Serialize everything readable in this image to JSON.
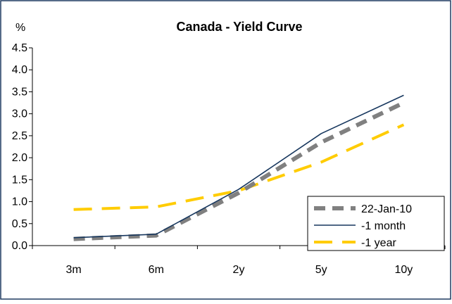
{
  "chart_data": {
    "type": "line",
    "title": "Canada - Yield Curve",
    "ylabel": "%",
    "xlabel": "",
    "categories": [
      "3m",
      "6m",
      "2y",
      "5y",
      "10y"
    ],
    "y_ticks": [
      "0.0",
      "0.5",
      "1.0",
      "1.5",
      "2.0",
      "2.5",
      "3.0",
      "3.5",
      "4.0",
      "4.5"
    ],
    "ylim": [
      0,
      4.5
    ],
    "grid": false,
    "legend_position": "bottom-right",
    "series": [
      {
        "name": "22-Jan-10",
        "values": [
          0.15,
          0.23,
          1.2,
          2.35,
          3.25
        ],
        "color": "#808080",
        "style": "dashed-thick"
      },
      {
        "name": "-1 month",
        "values": [
          0.18,
          0.26,
          1.28,
          2.55,
          3.42
        ],
        "color": "#17375E",
        "style": "solid"
      },
      {
        "name": "-1 year",
        "values": [
          0.82,
          0.88,
          1.25,
          1.9,
          2.75
        ],
        "color": "#FFCC00",
        "style": "dashed"
      }
    ]
  }
}
